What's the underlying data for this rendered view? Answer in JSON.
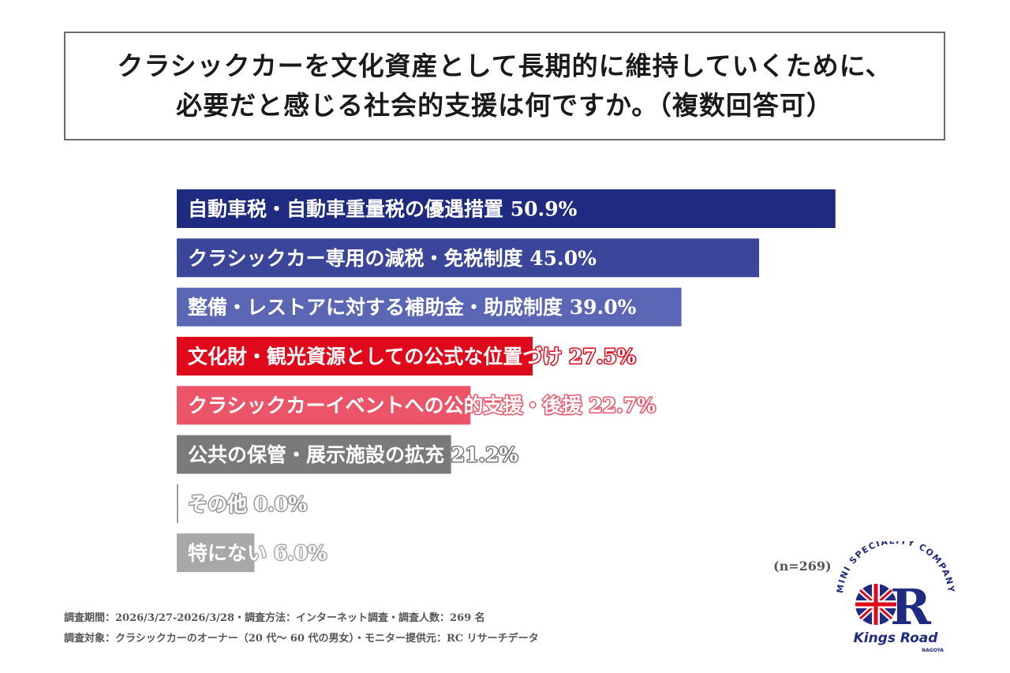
{
  "title": {
    "line1": "クラシックカーを文化資産として長期的に維持していくために、",
    "line2": "必要だと感じる社会的支援は何ですか。（複数回答可）"
  },
  "chart_data": {
    "type": "bar",
    "orientation": "horizontal",
    "categories": [
      "自動車税・自動車重量税の優遇措置",
      "クラシックカー専用の減税・免税制度",
      "整備・レストアに対する補助金・助成制度",
      "文化財・観光資源としての公式な位置づけ",
      "クラシックカーイベントへの公的支援・後援",
      "公共の保管・展示施設の拡充",
      "その他",
      "特にない"
    ],
    "values": [
      50.9,
      45.0,
      39.0,
      27.5,
      22.7,
      21.2,
      0.0,
      6.0
    ],
    "value_labels": [
      "50.9%",
      "45.0%",
      "39.0%",
      "27.5%",
      "22.7%",
      "21.2%",
      "0.0%",
      "6.0%"
    ],
    "colors": [
      "#1f2b80",
      "#3b469a",
      "#5b67b5",
      "#e0091b",
      "#ec5569",
      "#7a7a7a",
      "#9a9a9a",
      "#a8a8a8"
    ],
    "xlim": [
      0,
      55
    ],
    "grid": false,
    "legend": "none"
  },
  "sample_note": "(n=269)",
  "footnotes": {
    "line1": "調査期間：2026/3/27-2026/3/28・調査方法：インターネット調査・調査人数：269 名",
    "line2": "調査対象：クラシックカーのオーナー（20 代～ 60 代の男女）・モニター提供元：RC リサーチデータ"
  },
  "logo": {
    "arc_text": "MINI SPECIALITY COMPANY",
    "brand": "Kings Road",
    "sub": "NAGOYA",
    "colors": {
      "navy": "#1f2b80",
      "red": "#e0091b"
    }
  }
}
